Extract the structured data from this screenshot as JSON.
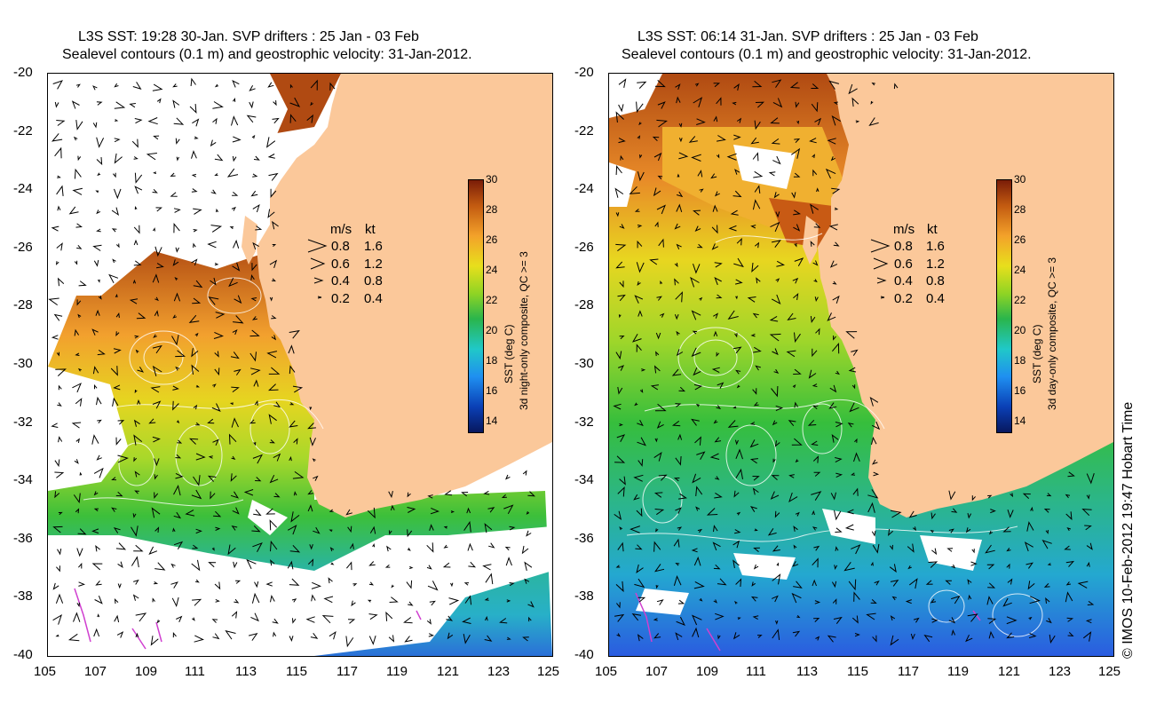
{
  "panels": [
    {
      "title_line1": "L3S SST: 19:28 30-Jan. SVP drifters : 25 Jan - 03 Feb",
      "title_line2": "Sealevel contours (0.1 m) and geostrophic velocity: 31-Jan-2012.",
      "colorbar_label_line1": "SST (deg C)",
      "colorbar_label_line2": "3d night-only composite, QC >= 3"
    },
    {
      "title_line1": "L3S SST: 06:14 31-Jan. SVP drifters : 25 Jan - 03 Feb",
      "title_line2": "Sealevel contours (0.1 m) and geostrophic velocity: 31-Jan-2012.",
      "colorbar_label_line1": "SST (deg C)",
      "colorbar_label_line2": "3d day-only composite, QC >= 3"
    }
  ],
  "axes": {
    "lat_ticks": [
      "-20",
      "-22",
      "-24",
      "-26",
      "-28",
      "-30",
      "-32",
      "-34",
      "-36",
      "-38",
      "-40"
    ],
    "lon_ticks": [
      "105",
      "107",
      "109",
      "111",
      "113",
      "115",
      "117",
      "119",
      "121",
      "123",
      "125"
    ]
  },
  "colorbar_ticks": [
    "30",
    "28",
    "26",
    "24",
    "22",
    "20",
    "18",
    "16",
    "14"
  ],
  "velocity_legend": {
    "header_ms": "m/s",
    "header_kt": "kt",
    "rows": [
      {
        "ms": "0.8",
        "kt": "1.6"
      },
      {
        "ms": "0.6",
        "kt": "1.2"
      },
      {
        "ms": "0.4",
        "kt": "0.8"
      },
      {
        "ms": "0.2",
        "kt": "0.4"
      }
    ]
  },
  "copyright": "© IMOS 10-Feb-2012 19:47 Hobart Time",
  "colors": {
    "land": "#fbc89a",
    "cloud": "#ffffff",
    "contour": "#ffffff",
    "arrow": "#000000",
    "drifter": "#d040d0"
  }
}
